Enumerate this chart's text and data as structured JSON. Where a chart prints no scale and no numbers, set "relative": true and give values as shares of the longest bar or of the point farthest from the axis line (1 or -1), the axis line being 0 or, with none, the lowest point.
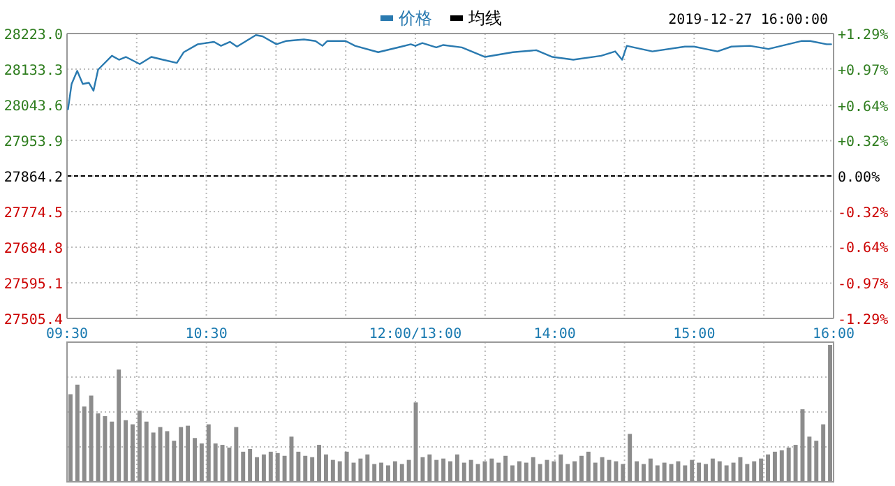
{
  "chart_data": [
    {
      "type": "line",
      "grid": true,
      "x": [
        9.507,
        9.533,
        9.573,
        9.613,
        9.657,
        9.69,
        9.723,
        9.822,
        9.873,
        9.922,
        10.022,
        10.105,
        10.188,
        10.288,
        10.338,
        10.438,
        10.555,
        10.605,
        10.67,
        10.72,
        10.855,
        10.903,
        11.003,
        11.07,
        11.2,
        11.283,
        11.333,
        11.367,
        11.5,
        11.567,
        11.733,
        11.9,
        11.967,
        12
      ],
      "series": [
        {
          "color": "#2a7ab0",
          "values": [
            28032,
            28096,
            28129,
            28096,
            28099,
            28079,
            28132,
            28167,
            28157,
            28164,
            28146,
            28164,
            28157,
            28149,
            28176,
            28196,
            28202,
            28192,
            28202,
            28190,
            28219,
            28216,
            28196,
            28204,
            28208,
            28204,
            28192,
            28204,
            28204,
            28192,
            28176,
            28190,
            28196,
            28192
          ]
        }
      ],
      "xlim": [
        9.5,
        12
      ],
      "xticks": [
        {
          "value": 9.5,
          "label": "09:30"
        },
        {
          "value": 10,
          "label": null
        },
        {
          "value": 10.5,
          "label": "10:30"
        },
        {
          "value": 11,
          "label": null
        },
        {
          "value": 11.5,
          "label": null
        },
        {
          "value": 12,
          "label": "12:00/13:00"
        }
      ],
      "ylim": [
        27505.4,
        28223.0
      ],
      "yticks": [
        27505.4,
        27595.1,
        27684.8,
        27774.5,
        27864.2,
        27953.9,
        28043.6,
        28133.3,
        {
          "value": 28223.0,
          "label": "28223.0"
        }
      ],
      "ref_lines": [
        {
          "axis": "y",
          "value": 27864.2,
          "color": "#000000",
          "line_style": "dashed"
        }
      ]
    },
    {
      "type": "line",
      "subtitle": "2019-12-27 16:00:00",
      "legend": "top left",
      "grid": true,
      "x": [
        13.0,
        13.05,
        13.15,
        13.2,
        13.333,
        13.5,
        13.7,
        13.867,
        13.983,
        14.133,
        14.333,
        14.433,
        14.483,
        14.517,
        14.567,
        14.7,
        14.933,
        15.0,
        15.167,
        15.267,
        15.4,
        15.533,
        15.767,
        15.833,
        15.95,
        15.983
      ],
      "series": [
        {
          "name": "价格",
          "color": "#2a7ab0",
          "values": [
            28192,
            28199,
            28188,
            28194,
            28188,
            28164,
            28176,
            28181,
            28164,
            28157,
            28167,
            28178,
            28157,
            28192,
            28188,
            28178,
            28190,
            28190,
            28178,
            28190,
            28192,
            28184,
            28204,
            28204,
            28196,
            28196
          ]
        },
        {
          "name": "均线",
          "color": "#000000",
          "values": [
            null,
            null,
            null,
            null,
            null,
            null,
            null,
            null,
            null,
            null,
            null,
            null,
            null,
            null,
            null,
            null,
            null,
            null,
            null,
            null,
            null,
            null,
            null,
            null,
            null,
            null
          ]
        }
      ],
      "xlim": [
        13,
        16
      ],
      "xticks": [
        {
          "value": 13.5,
          "label": null
        },
        {
          "value": 14,
          "label": "14:00"
        },
        {
          "value": 14.5,
          "label": null
        },
        {
          "value": 15,
          "label": "15:00"
        },
        {
          "value": 15.5,
          "label": null
        },
        {
          "value": 16,
          "label": "16:00"
        }
      ],
      "ylim": [
        27505.4,
        28223.0
      ],
      "y2lim": [
        -1.29,
        1.29
      ],
      "y2ticks": [
        {
          "value": -1.29,
          "label": "-1.29%"
        },
        {
          "value": -0.97,
          "label": "-0.97%"
        },
        {
          "value": -0.64,
          "label": "-0.64%"
        },
        {
          "value": -0.32,
          "label": "-0.32%"
        },
        {
          "value": 0,
          "label": "0.00%"
        },
        {
          "value": 0.32,
          "label": "+0.32%"
        },
        {
          "value": 0.64,
          "label": "+0.64%"
        },
        {
          "value": 0.97,
          "label": "+0.97%"
        },
        {
          "value": 1.29,
          "label": "+1.29%"
        }
      ],
      "ref_lines": [
        {
          "axis": "y",
          "value": 27864.2,
          "color": "#000000",
          "line_style": "dashed"
        }
      ]
    },
    {
      "type": "bar",
      "relative": true,
      "grid": true,
      "color": "#8c8c8c",
      "categories": [
        null,
        null,
        null,
        null,
        null,
        null,
        null,
        null,
        null,
        null,
        null,
        null,
        null,
        null,
        null,
        null,
        null,
        null,
        null,
        null,
        null,
        null,
        null,
        null,
        null,
        null,
        null,
        null,
        null,
        null,
        null,
        null,
        null,
        null,
        null,
        null,
        null,
        null,
        null,
        null,
        null,
        null,
        null,
        null,
        null,
        null,
        null,
        null,
        null,
        null,
        null,
        null,
        null,
        null,
        null,
        null,
        null,
        null,
        null,
        null,
        null,
        null,
        null,
        null,
        null,
        null,
        null,
        null,
        null,
        null,
        null,
        null,
        null,
        null,
        null,
        null,
        null,
        null,
        null,
        null,
        null,
        null,
        null,
        null,
        null,
        null,
        null,
        null,
        null,
        null,
        null,
        null,
        null,
        null,
        null,
        null,
        null,
        null,
        null,
        null,
        null,
        null,
        null,
        null,
        null,
        null,
        null,
        null,
        null,
        null,
        null
      ],
      "values": [
        0.64,
        0.71,
        0.55,
        0.63,
        0.5,
        0.48,
        0.44,
        0.82,
        0.45,
        0.42,
        0.52,
        0.44,
        0.36,
        0.4,
        0.37,
        0.3,
        0.4,
        0.41,
        0.32,
        0.28,
        0.42,
        0.28,
        0.27,
        0.25,
        0.4,
        0.22,
        0.24,
        0.18,
        0.2,
        0.22,
        0.21,
        0.19,
        0.33,
        0.22,
        0.19,
        0.18,
        0.27,
        0.2,
        0.16,
        0.15,
        0.22,
        0.14,
        0.17,
        0.2,
        0.13,
        0.14,
        0.12,
        0.15,
        0.13,
        0.16,
        0.58,
        0.18,
        0.2,
        0.16,
        0.17,
        0.15,
        0.2,
        0.14,
        0.16,
        0.13,
        0.15,
        0.17,
        0.14,
        0.19,
        0.12,
        0.15,
        0.14,
        0.18,
        0.13,
        0.16,
        0.15,
        0.2,
        0.13,
        0.15,
        0.19,
        0.22,
        0.14,
        0.18,
        0.16,
        0.15,
        0.13,
        0.35,
        0.15,
        0.13,
        0.17,
        0.12,
        0.14,
        0.13,
        0.15,
        0.12,
        0.16,
        0.14,
        0.13,
        0.17,
        0.15,
        0.12,
        0.14,
        0.18,
        0.13,
        0.15,
        0.17,
        0.2,
        0.22,
        0.23,
        0.25,
        0.27,
        0.53,
        0.33,
        0.3,
        0.42,
        1.0
      ]
    }
  ]
}
